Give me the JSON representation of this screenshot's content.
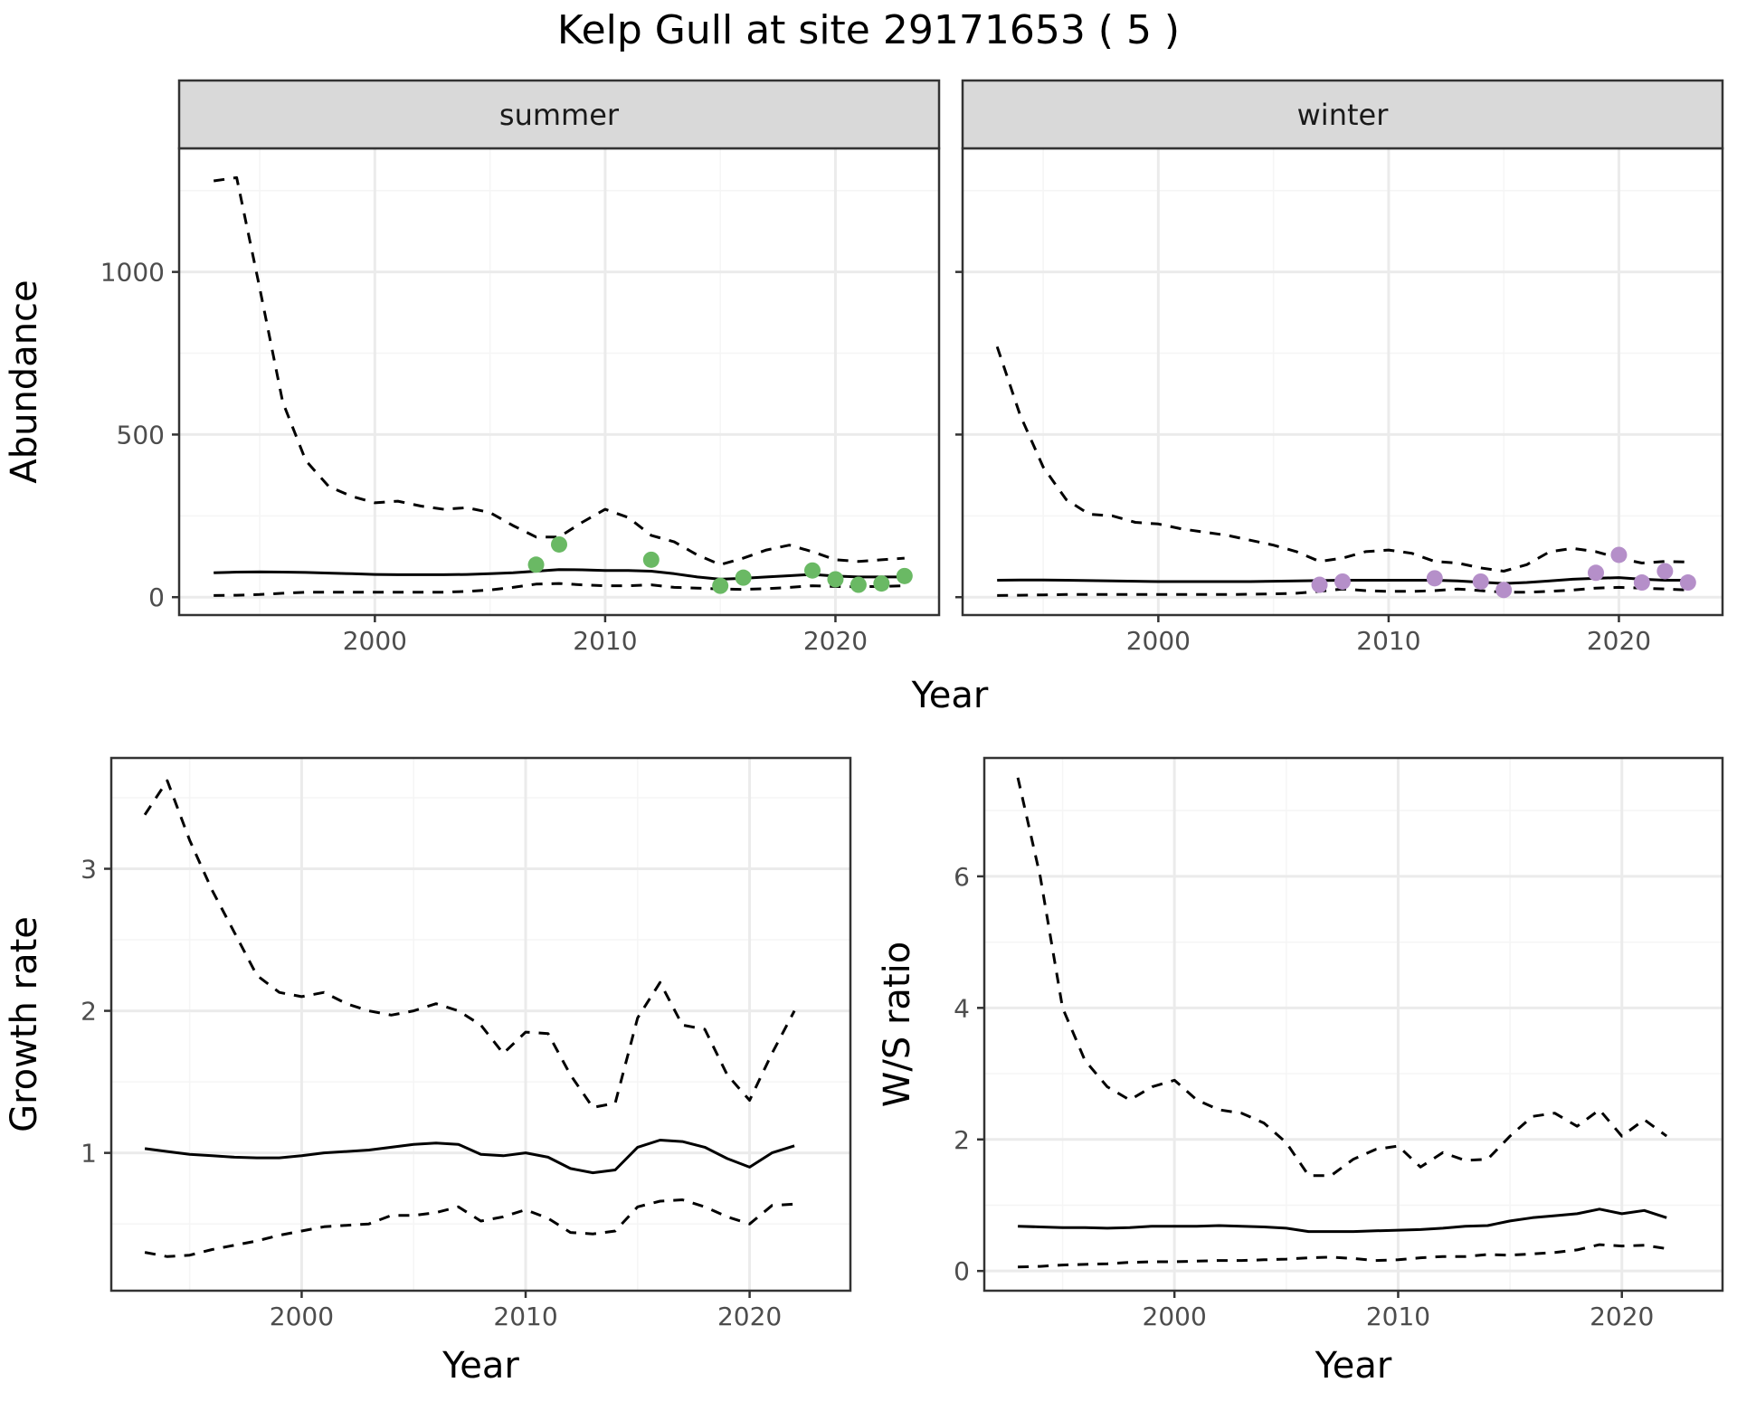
{
  "title": "Kelp Gull at site 29171653 ( 5 )",
  "colors": {
    "summer_points": "#6ab964",
    "winter_points": "#b58fc9",
    "line": "#000000",
    "grid_major": "#ebebeb",
    "grid_minor": "#f5f5f5",
    "strip_fill": "#d9d9d9",
    "strip_border": "#333333"
  },
  "chart_data": [
    {
      "type": "line",
      "panel": "summer",
      "strip": "summer",
      "xlabel": "Year",
      "ylabel": "Abundance",
      "xlim": [
        1991.5,
        2024.5
      ],
      "ylim": [
        -55,
        1380
      ],
      "xticks": [
        2000,
        2010,
        2020
      ],
      "yticks": [
        0,
        500,
        1000
      ],
      "grid": true,
      "point_color": "#6ab964",
      "series": [
        {
          "role": "mean",
          "style": "solid",
          "x": [
            1993,
            1994,
            1995,
            1996,
            1997,
            1998,
            1999,
            2000,
            2001,
            2002,
            2003,
            2004,
            2005,
            2006,
            2007,
            2008,
            2009,
            2010,
            2011,
            2012,
            2013,
            2014,
            2015,
            2016,
            2017,
            2018,
            2019,
            2020,
            2021,
            2022,
            2023
          ],
          "y": [
            75,
            77,
            78,
            77,
            76,
            74,
            72,
            70,
            69,
            69,
            69,
            70,
            72,
            75,
            80,
            85,
            84,
            82,
            82,
            80,
            72,
            62,
            55,
            58,
            62,
            66,
            70,
            65,
            62,
            62,
            62
          ]
        },
        {
          "role": "upper",
          "style": "dashed",
          "x": [
            1993,
            1994,
            1995,
            1996,
            1997,
            1998,
            1999,
            2000,
            2001,
            2002,
            2003,
            2004,
            2005,
            2006,
            2007,
            2008,
            2009,
            2010,
            2011,
            2012,
            2013,
            2014,
            2015,
            2016,
            2017,
            2018,
            2019,
            2020,
            2021,
            2022,
            2023
          ],
          "y": [
            1280,
            1290,
            950,
            600,
            420,
            340,
            310,
            290,
            295,
            280,
            270,
            275,
            260,
            220,
            185,
            185,
            230,
            270,
            245,
            190,
            170,
            130,
            100,
            120,
            145,
            160,
            140,
            115,
            110,
            115,
            120
          ]
        },
        {
          "role": "lower",
          "style": "dashed",
          "x": [
            1993,
            1994,
            1995,
            1996,
            1997,
            1998,
            1999,
            2000,
            2001,
            2002,
            2003,
            2004,
            2005,
            2006,
            2007,
            2008,
            2009,
            2010,
            2011,
            2012,
            2013,
            2014,
            2015,
            2016,
            2017,
            2018,
            2019,
            2020,
            2021,
            2022,
            2023
          ],
          "y": [
            5,
            6,
            8,
            12,
            15,
            15,
            15,
            15,
            15,
            15,
            15,
            18,
            22,
            30,
            40,
            42,
            38,
            35,
            35,
            38,
            30,
            28,
            25,
            24,
            26,
            30,
            35,
            33,
            32,
            33,
            35
          ]
        },
        {
          "role": "observed",
          "style": "points",
          "x": [
            2007,
            2008,
            2012,
            2015,
            2016,
            2019,
            2020,
            2021,
            2022,
            2023
          ],
          "y": [
            100,
            162,
            115,
            35,
            60,
            82,
            55,
            38,
            42,
            65
          ]
        }
      ]
    },
    {
      "type": "line",
      "panel": "winter",
      "strip": "winter",
      "xlabel": "Year",
      "ylabel": "Abundance",
      "xlim": [
        1991.5,
        2024.5
      ],
      "ylim": [
        -55,
        1380
      ],
      "xticks": [
        2000,
        2010,
        2020
      ],
      "yticks": [
        0,
        500,
        1000
      ],
      "grid": true,
      "point_color": "#b58fc9",
      "series": [
        {
          "role": "mean",
          "style": "solid",
          "x": [
            1993,
            1994,
            1995,
            1996,
            1997,
            1998,
            1999,
            2000,
            2001,
            2002,
            2003,
            2004,
            2005,
            2006,
            2007,
            2008,
            2009,
            2010,
            2011,
            2012,
            2013,
            2014,
            2015,
            2016,
            2017,
            2018,
            2019,
            2020,
            2021,
            2022,
            2023
          ],
          "y": [
            52,
            53,
            53,
            52,
            51,
            50,
            49,
            48,
            48,
            48,
            48,
            48,
            49,
            50,
            51,
            52,
            52,
            52,
            52,
            52,
            50,
            46,
            42,
            45,
            50,
            55,
            58,
            60,
            55,
            52,
            52
          ]
        },
        {
          "role": "upper",
          "style": "dashed",
          "x": [
            1993,
            1994,
            1995,
            1996,
            1997,
            1998,
            1999,
            2000,
            2001,
            2002,
            2003,
            2004,
            2005,
            2006,
            2007,
            2008,
            2009,
            2010,
            2011,
            2012,
            2013,
            2014,
            2015,
            2016,
            2017,
            2018,
            2019,
            2020,
            2021,
            2022,
            2023
          ],
          "y": [
            770,
            560,
            400,
            300,
            255,
            250,
            230,
            225,
            210,
            200,
            190,
            175,
            160,
            140,
            110,
            120,
            140,
            145,
            135,
            110,
            105,
            90,
            80,
            100,
            140,
            150,
            140,
            120,
            105,
            110,
            108
          ]
        },
        {
          "role": "lower",
          "style": "dashed",
          "x": [
            1993,
            1994,
            1995,
            1996,
            1997,
            1998,
            1999,
            2000,
            2001,
            2002,
            2003,
            2004,
            2005,
            2006,
            2007,
            2008,
            2009,
            2010,
            2011,
            2012,
            2013,
            2014,
            2015,
            2016,
            2017,
            2018,
            2019,
            2020,
            2021,
            2022,
            2023
          ],
          "y": [
            5,
            6,
            7,
            8,
            8,
            8,
            8,
            8,
            8,
            8,
            8,
            9,
            10,
            12,
            18,
            25,
            20,
            18,
            18,
            20,
            25,
            20,
            15,
            15,
            18,
            22,
            28,
            30,
            28,
            25,
            22
          ]
        },
        {
          "role": "observed",
          "style": "points",
          "x": [
            2007,
            2008,
            2012,
            2014,
            2015,
            2019,
            2020,
            2021,
            2022,
            2023
          ],
          "y": [
            38,
            48,
            58,
            48,
            22,
            75,
            130,
            45,
            80,
            45
          ]
        }
      ]
    },
    {
      "type": "line",
      "panel": "growth",
      "xlabel": "Year",
      "ylabel": "Growth rate",
      "xlim": [
        1991.5,
        2024.5
      ],
      "ylim": [
        0.03,
        3.78
      ],
      "xticks": [
        2000,
        2010,
        2020
      ],
      "yticks": [
        1,
        2,
        3
      ],
      "grid": true,
      "series": [
        {
          "role": "mean",
          "style": "solid",
          "x": [
            1993,
            1994,
            1995,
            1996,
            1997,
            1998,
            1999,
            2000,
            2001,
            2002,
            2003,
            2004,
            2005,
            2006,
            2007,
            2008,
            2009,
            2010,
            2011,
            2012,
            2013,
            2014,
            2015,
            2016,
            2017,
            2018,
            2019,
            2020,
            2021,
            2022
          ],
          "y": [
            1.03,
            1.01,
            0.99,
            0.98,
            0.97,
            0.965,
            0.965,
            0.98,
            1.0,
            1.01,
            1.02,
            1.04,
            1.06,
            1.07,
            1.06,
            0.99,
            0.98,
            1.0,
            0.97,
            0.89,
            0.86,
            0.88,
            1.04,
            1.09,
            1.08,
            1.04,
            0.96,
            0.9,
            1.0,
            1.05
          ]
        },
        {
          "role": "upper",
          "style": "dashed",
          "x": [
            1993,
            1994,
            1995,
            1996,
            1997,
            1998,
            1999,
            2000,
            2001,
            2002,
            2003,
            2004,
            2005,
            2006,
            2007,
            2008,
            2009,
            2010,
            2011,
            2012,
            2013,
            2014,
            2015,
            2016,
            2017,
            2018,
            2019,
            2020,
            2021,
            2022
          ],
          "y": [
            3.38,
            3.62,
            3.2,
            2.85,
            2.55,
            2.25,
            2.13,
            2.1,
            2.13,
            2.05,
            2.0,
            1.97,
            2.0,
            2.05,
            2.0,
            1.9,
            1.7,
            1.85,
            1.84,
            1.55,
            1.32,
            1.35,
            1.95,
            2.2,
            1.9,
            1.87,
            1.55,
            1.37,
            1.7,
            2.0
          ]
        },
        {
          "role": "lower",
          "style": "dashed",
          "x": [
            1993,
            1994,
            1995,
            1996,
            1997,
            1998,
            1999,
            2000,
            2001,
            2002,
            2003,
            2004,
            2005,
            2006,
            2007,
            2008,
            2009,
            2010,
            2011,
            2012,
            2013,
            2014,
            2015,
            2016,
            2017,
            2018,
            2019,
            2020,
            2021,
            2022
          ],
          "y": [
            0.3,
            0.27,
            0.28,
            0.32,
            0.35,
            0.38,
            0.42,
            0.45,
            0.48,
            0.49,
            0.5,
            0.56,
            0.56,
            0.58,
            0.62,
            0.52,
            0.55,
            0.6,
            0.54,
            0.44,
            0.43,
            0.45,
            0.62,
            0.66,
            0.67,
            0.62,
            0.55,
            0.5,
            0.63,
            0.64
          ]
        }
      ]
    },
    {
      "type": "line",
      "panel": "ratio",
      "xlabel": "Year",
      "ylabel": "W/S ratio",
      "xlim": [
        1991.5,
        2024.5
      ],
      "ylim": [
        -0.3,
        7.8
      ],
      "xticks": [
        2000,
        2010,
        2020
      ],
      "yticks": [
        0,
        2,
        4,
        6
      ],
      "grid": true,
      "series": [
        {
          "role": "mean",
          "style": "solid",
          "x": [
            1993,
            1994,
            1995,
            1996,
            1997,
            1998,
            1999,
            2000,
            2001,
            2002,
            2003,
            2004,
            2005,
            2006,
            2007,
            2008,
            2009,
            2010,
            2011,
            2012,
            2013,
            2014,
            2015,
            2016,
            2017,
            2018,
            2019,
            2020,
            2021,
            2022
          ],
          "y": [
            0.68,
            0.67,
            0.66,
            0.66,
            0.65,
            0.66,
            0.68,
            0.68,
            0.68,
            0.69,
            0.68,
            0.67,
            0.65,
            0.6,
            0.6,
            0.6,
            0.61,
            0.62,
            0.63,
            0.65,
            0.68,
            0.69,
            0.76,
            0.81,
            0.84,
            0.87,
            0.94,
            0.87,
            0.92,
            0.81
          ]
        },
        {
          "role": "upper",
          "style": "dashed",
          "x": [
            1993,
            1994,
            1995,
            1996,
            1997,
            1998,
            1999,
            2000,
            2001,
            2002,
            2003,
            2004,
            2005,
            2006,
            2007,
            2008,
            2009,
            2010,
            2011,
            2012,
            2013,
            2014,
            2015,
            2016,
            2017,
            2018,
            2019,
            2020,
            2021,
            2022
          ],
          "y": [
            7.5,
            6.0,
            4.0,
            3.2,
            2.8,
            2.6,
            2.8,
            2.9,
            2.6,
            2.45,
            2.4,
            2.25,
            1.95,
            1.45,
            1.45,
            1.7,
            1.85,
            1.9,
            1.58,
            1.8,
            1.68,
            1.7,
            2.05,
            2.35,
            2.4,
            2.2,
            2.45,
            2.05,
            2.3,
            2.05
          ]
        },
        {
          "role": "lower",
          "style": "dashed",
          "x": [
            1993,
            1994,
            1995,
            1996,
            1997,
            1998,
            1999,
            2000,
            2001,
            2002,
            2003,
            2004,
            2005,
            2006,
            2007,
            2008,
            2009,
            2010,
            2011,
            2012,
            2013,
            2014,
            2015,
            2016,
            2017,
            2018,
            2019,
            2020,
            2021,
            2022
          ],
          "y": [
            0.06,
            0.07,
            0.09,
            0.1,
            0.11,
            0.13,
            0.14,
            0.14,
            0.15,
            0.16,
            0.16,
            0.17,
            0.18,
            0.2,
            0.21,
            0.19,
            0.16,
            0.17,
            0.2,
            0.22,
            0.22,
            0.25,
            0.24,
            0.26,
            0.28,
            0.32,
            0.4,
            0.38,
            0.39,
            0.34
          ]
        }
      ]
    }
  ]
}
